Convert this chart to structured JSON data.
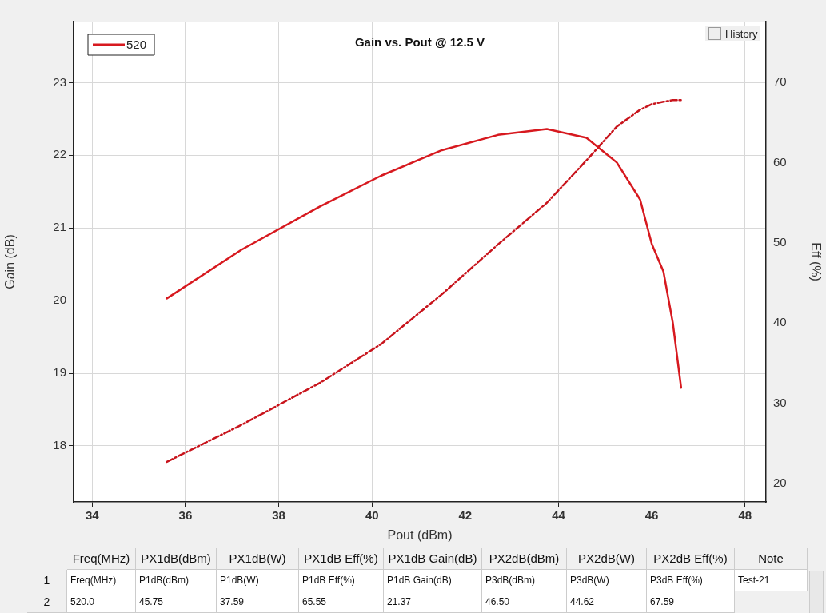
{
  "chart_data": {
    "type": "line",
    "title": "Gain vs. Pout @ 12.5 V",
    "xlabel": "Pout (dBm)",
    "ylabel": "Gain (dB)",
    "y2label": "Eff (%)",
    "x": [
      35.6,
      37.2,
      38.9,
      40.2,
      41.5,
      42.7,
      43.75,
      44.6,
      45.25,
      45.75,
      46.0,
      46.25,
      46.45,
      46.63
    ],
    "series": [
      {
        "name": "520",
        "color": "#d7191f",
        "line_style": "solid",
        "values": [
          20.03,
          20.7,
          21.3,
          21.72,
          22.07,
          22.28,
          22.36,
          22.24,
          21.9,
          21.39,
          20.78,
          20.4,
          19.7,
          18.8
        ]
      },
      {
        "color": "#c8141c",
        "line_style": "dashed",
        "axis": "y2",
        "values": [
          22.7,
          27.3,
          32.6,
          37.4,
          43.6,
          49.8,
          55.0,
          60.3,
          64.5,
          66.6,
          67.3,
          67.6,
          67.8,
          67.8
        ]
      }
    ],
    "xlim": [
      33.6,
      48.45
    ],
    "xticks": [
      34,
      36,
      38,
      40,
      42,
      44,
      46,
      48
    ],
    "ylim": [
      17.23,
      23.84
    ],
    "yticks": [
      18,
      19,
      20,
      21,
      22,
      23
    ],
    "y2lim": [
      17.7,
      77.6
    ],
    "y2ticks": [
      20,
      30,
      40,
      50,
      60,
      70
    ],
    "grid": true,
    "legend": "top left",
    "marker": "none",
    "annotations": [
      "History",
      "Freq(MHz)",
      "PX1dB(dBm)",
      "PX1dB(W)",
      "PX1dB Eff(%)",
      "PX1dB Gain(dB)",
      "PX2dB(dBm)",
      "PX2dB(W)",
      "PX2dB Eff(%)",
      "Note",
      "1",
      "Freq(MHz)",
      "P1dB(dBm)",
      "P1dB(W)",
      "P1dB Eff(%)",
      "P1dB Gain(dB)",
      "P3dB(dBm)",
      "P3dB(W)",
      "P3dB Eff(%)",
      "Test-21",
      "2",
      "520.0",
      "45.75",
      "37.59",
      "65.55",
      "21.37",
      "46.50",
      "44.62",
      "67.59"
    ]
  }
}
